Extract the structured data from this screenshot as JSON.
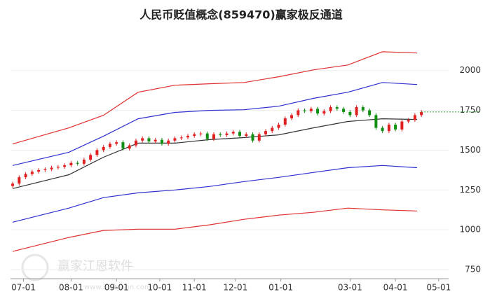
{
  "chart_data": {
    "type": "candlestick",
    "title": "人民币贬值概念(859470)赢家极反通道",
    "watermark": "赢家江恩软件",
    "watermark_url": "www.360gann.com",
    "xlim": [
      -1,
      201.6
    ],
    "ylim": [
      693,
      2245
    ],
    "yticks": [
      750,
      1000,
      1250,
      1500,
      1750,
      2000
    ],
    "xticks": [
      {
        "value": 5,
        "label": "07-01"
      },
      {
        "value": 27,
        "label": "08-01"
      },
      {
        "value": 48,
        "label": "09-01"
      },
      {
        "value": 68,
        "label": "10-01"
      },
      {
        "value": 84,
        "label": "11-01"
      },
      {
        "value": 103,
        "label": "12-01"
      },
      {
        "value": 124,
        "label": "01-01"
      },
      {
        "value": 156,
        "label": "03-01"
      },
      {
        "value": 177,
        "label": "04-01"
      },
      {
        "value": 197,
        "label": "05-01"
      }
    ],
    "grid": true,
    "up_color": "#e02020",
    "down_color": "#109010",
    "last_line_color": "#22aa22",
    "x": [
      0,
      26,
      42,
      58,
      75,
      91,
      107,
      123,
      139,
      155,
      171,
      187
    ],
    "series": [
      {
        "color": "#e03030",
        "values": [
          1539,
          1640,
          1719,
          1864,
          1908,
          1917,
          1925,
          1961,
          2004,
          2035,
          2118,
          2110
        ]
      },
      {
        "color": "#3030d0",
        "values": [
          1404,
          1487,
          1588,
          1697,
          1737,
          1750,
          1754,
          1776,
          1825,
          1864,
          1925,
          1912
        ]
      },
      {
        "color": "#333333",
        "values": [
          1259,
          1346,
          1456,
          1544,
          1544,
          1566,
          1579,
          1596,
          1640,
          1680,
          1697,
          1693
        ]
      },
      {
        "color": "#3030d0",
        "values": [
          1048,
          1136,
          1202,
          1232,
          1250,
          1272,
          1303,
          1329,
          1360,
          1390,
          1404,
          1390
        ]
      },
      {
        "color": "#e03030",
        "values": [
          864,
          952,
          996,
          1004,
          1004,
          1031,
          1066,
          1092,
          1110,
          1136,
          1125,
          1118
        ]
      }
    ],
    "candles": {
      "x": [
        0,
        3,
        6,
        9,
        12,
        15,
        18,
        21,
        24,
        27,
        30,
        33,
        36,
        39,
        42,
        45,
        48,
        51,
        54,
        57,
        60,
        63,
        66,
        69,
        72,
        75,
        78,
        81,
        84,
        87,
        90,
        93,
        96,
        99,
        102,
        105,
        108,
        111,
        114,
        117,
        120,
        123,
        126,
        129,
        132,
        135,
        138,
        141,
        144,
        147,
        150,
        153,
        156,
        159,
        162,
        165,
        168,
        171,
        174,
        177,
        180,
        183,
        186,
        189
      ],
      "open": [
        1275,
        1290,
        1330,
        1350,
        1365,
        1375,
        1380,
        1390,
        1395,
        1405,
        1420,
        1415,
        1440,
        1470,
        1500,
        1520,
        1540,
        1550,
        1510,
        1530,
        1560,
        1575,
        1555,
        1565,
        1540,
        1560,
        1575,
        1580,
        1590,
        1600,
        1605,
        1570,
        1600,
        1595,
        1605,
        1615,
        1590,
        1600,
        1560,
        1600,
        1620,
        1640,
        1660,
        1700,
        1720,
        1750,
        1745,
        1760,
        1730,
        1745,
        1770,
        1760,
        1740,
        1720,
        1770,
        1750,
        1720,
        1640,
        1620,
        1660,
        1630,
        1680,
        1690,
        1720
      ],
      "high": [
        1302,
        1342,
        1362,
        1377,
        1387,
        1392,
        1402,
        1407,
        1417,
        1432,
        1432,
        1452,
        1482,
        1512,
        1532,
        1552,
        1562,
        1562,
        1542,
        1572,
        1587,
        1587,
        1577,
        1577,
        1572,
        1587,
        1592,
        1602,
        1612,
        1617,
        1617,
        1612,
        1612,
        1617,
        1627,
        1627,
        1612,
        1612,
        1612,
        1632,
        1652,
        1672,
        1712,
        1732,
        1762,
        1762,
        1772,
        1772,
        1757,
        1782,
        1782,
        1772,
        1752,
        1782,
        1782,
        1762,
        1732,
        1652,
        1672,
        1672,
        1692,
        1702,
        1732,
        1752
      ],
      "low": [
        1263,
        1278,
        1318,
        1338,
        1353,
        1363,
        1368,
        1378,
        1383,
        1393,
        1403,
        1403,
        1428,
        1458,
        1488,
        1508,
        1528,
        1498,
        1498,
        1518,
        1548,
        1543,
        1543,
        1528,
        1528,
        1548,
        1563,
        1568,
        1578,
        1588,
        1558,
        1558,
        1583,
        1583,
        1593,
        1578,
        1578,
        1548,
        1548,
        1588,
        1608,
        1628,
        1648,
        1688,
        1708,
        1733,
        1733,
        1718,
        1718,
        1733,
        1748,
        1728,
        1708,
        1708,
        1738,
        1708,
        1628,
        1608,
        1608,
        1618,
        1618,
        1668,
        1678,
        1708
      ],
      "close": [
        1290,
        1330,
        1350,
        1365,
        1375,
        1380,
        1390,
        1395,
        1405,
        1420,
        1415,
        1440,
        1470,
        1500,
        1520,
        1540,
        1550,
        1510,
        1530,
        1560,
        1575,
        1555,
        1565,
        1540,
        1560,
        1575,
        1580,
        1590,
        1600,
        1605,
        1570,
        1600,
        1595,
        1605,
        1615,
        1590,
        1600,
        1560,
        1600,
        1620,
        1640,
        1660,
        1700,
        1720,
        1750,
        1745,
        1760,
        1730,
        1745,
        1770,
        1760,
        1740,
        1720,
        1770,
        1750,
        1720,
        1640,
        1620,
        1660,
        1630,
        1680,
        1690,
        1720,
        1740
      ]
    }
  }
}
